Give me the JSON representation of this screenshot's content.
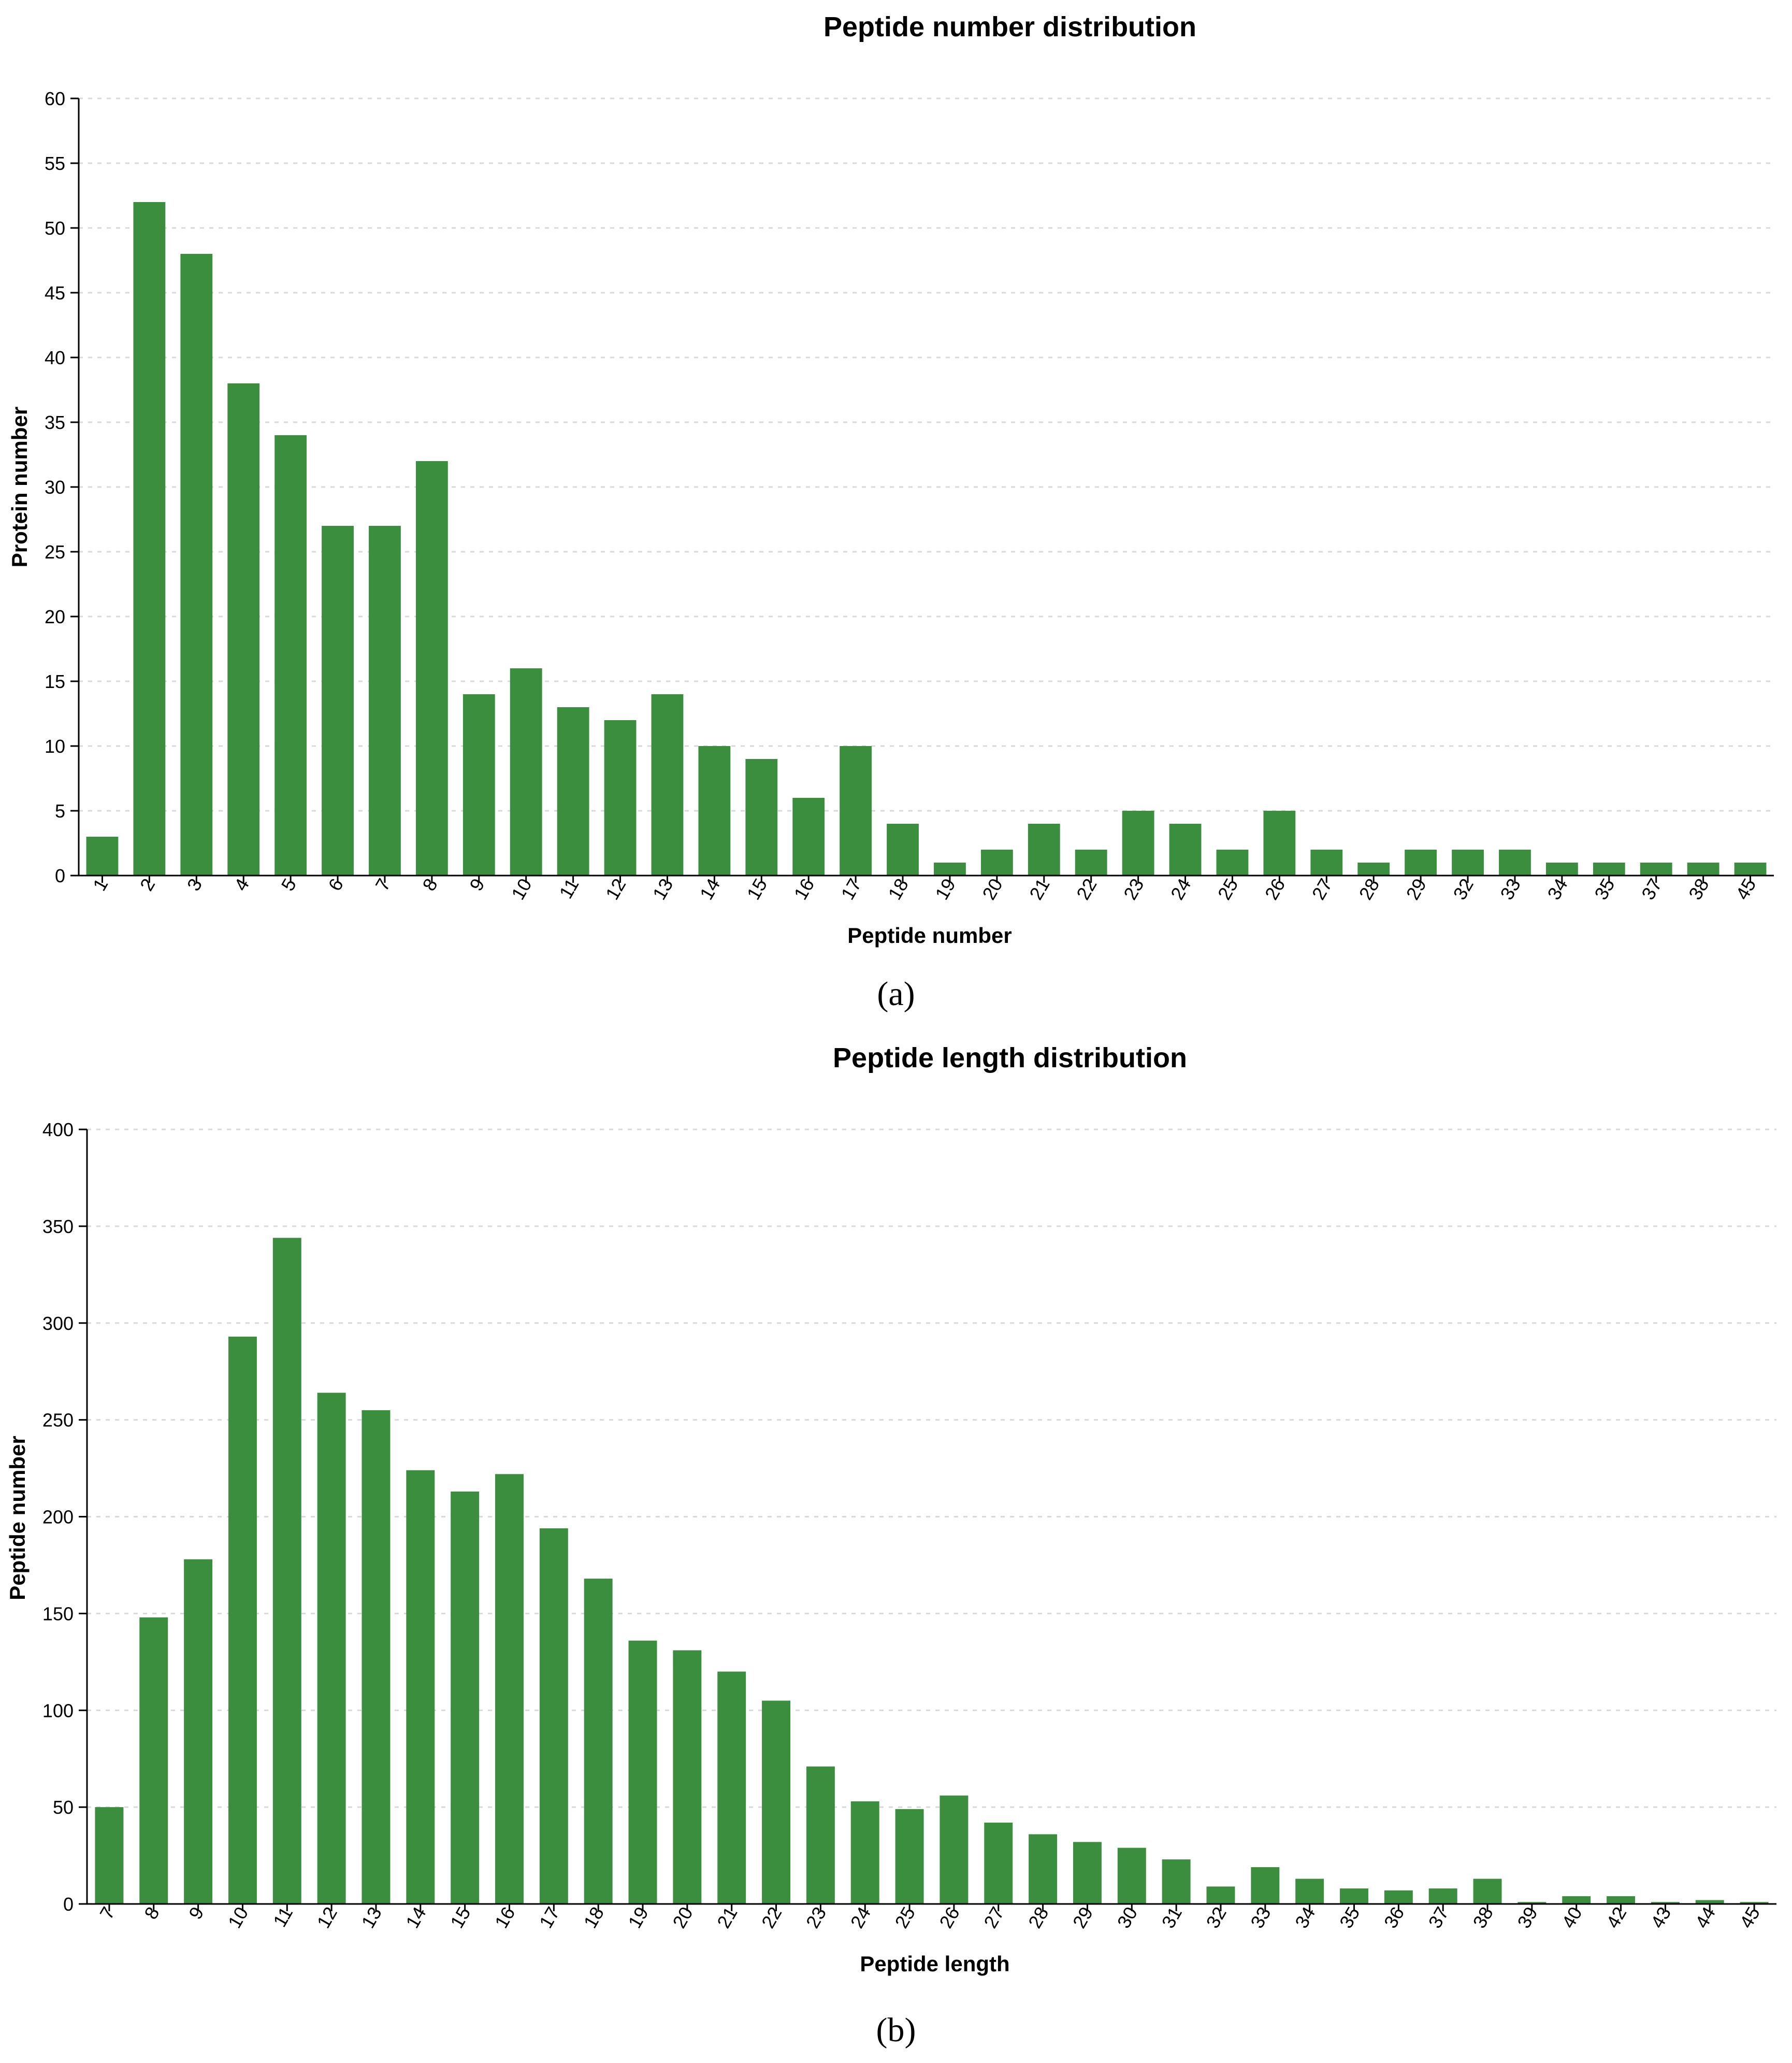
{
  "colors": {
    "bar": "#3a8e3e"
  },
  "chart_data": [
    {
      "type": "bar",
      "title": "Peptide number distribution",
      "xlabel": "Peptide number",
      "ylabel": "Protein number",
      "caption": "(a)",
      "ylim": [
        0,
        60
      ],
      "yticks": [
        0,
        5,
        10,
        15,
        20,
        25,
        30,
        35,
        40,
        45,
        50,
        55,
        60
      ],
      "grid": true,
      "categories": [
        "1",
        "2",
        "3",
        "4",
        "5",
        "6",
        "7",
        "8",
        "9",
        "10",
        "11",
        "12",
        "13",
        "14",
        "15",
        "16",
        "17",
        "18",
        "19",
        "20",
        "21",
        "22",
        "23",
        "24",
        "25",
        "26",
        "27",
        "28",
        "29",
        "32",
        "33",
        "34",
        "35",
        "37",
        "38",
        "45"
      ],
      "values": [
        3,
        52,
        48,
        38,
        34,
        27,
        27,
        32,
        14,
        16,
        13,
        12,
        14,
        10,
        9,
        6,
        10,
        4,
        1,
        2,
        4,
        2,
        5,
        4,
        2,
        5,
        2,
        1,
        2,
        2,
        2,
        1,
        1,
        1,
        1,
        1
      ]
    },
    {
      "type": "bar",
      "title": "Peptide length distribution",
      "xlabel": "Peptide length",
      "ylabel": "Peptide number",
      "caption": "(b)",
      "ylim": [
        0,
        400
      ],
      "yticks": [
        0,
        50,
        100,
        150,
        200,
        250,
        300,
        350,
        400
      ],
      "grid": true,
      "categories": [
        "7",
        "8",
        "9",
        "10",
        "11",
        "12",
        "13",
        "14",
        "15",
        "16",
        "17",
        "18",
        "19",
        "20",
        "21",
        "22",
        "23",
        "24",
        "25",
        "26",
        "27",
        "28",
        "29",
        "30",
        "31",
        "32",
        "33",
        "34",
        "35",
        "36",
        "37",
        "38",
        "39",
        "40",
        "42",
        "43",
        "44",
        "45"
      ],
      "values": [
        50,
        148,
        178,
        293,
        344,
        264,
        255,
        224,
        213,
        222,
        194,
        168,
        136,
        131,
        120,
        105,
        71,
        53,
        49,
        56,
        42,
        36,
        32,
        29,
        23,
        9,
        19,
        13,
        8,
        7,
        8,
        13,
        1,
        4,
        4,
        1,
        2,
        1
      ]
    }
  ]
}
